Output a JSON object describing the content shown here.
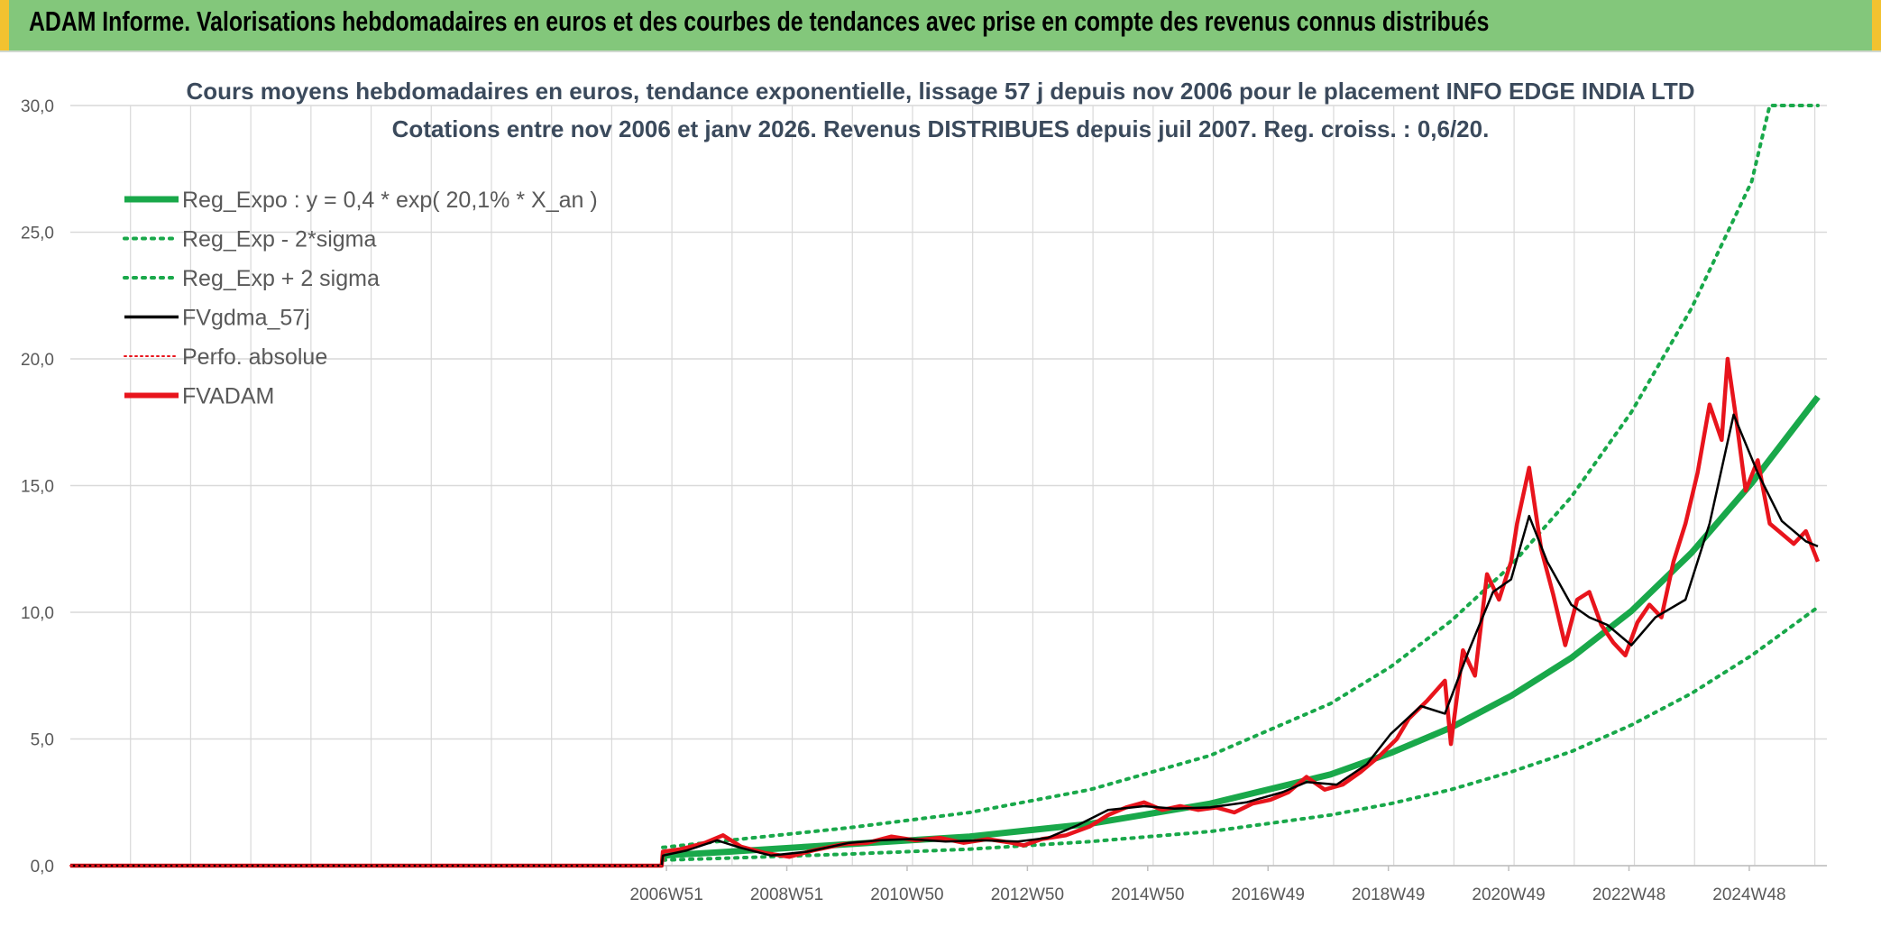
{
  "header": {
    "title": "ADAM Informe. Valorisations hebdomadaires en euros et des courbes de tendances avec prise en compte des revenus connus distribués"
  },
  "colors": {
    "banner_bg": "#83c77b",
    "banner_border": "#f2c230",
    "reg_expo": "#19a84a",
    "fvgdma": "#000000",
    "perfo": "#e8141c",
    "fvadam": "#e8141c",
    "grid": "#d9d9d9"
  },
  "chart_data": {
    "type": "line",
    "title": "Cours moyens hebdomadaires en euros, tendance exponentielle, lissage 57 j depuis nov 2006 pour le placement INFO EDGE INDIA LTD",
    "subtitle": "Cotations entre nov 2006 et janv 2026. Revenus DISTRIBUES depuis juil 2007. Reg. croiss. : 0,6/20.",
    "xlabel": "",
    "ylabel": "",
    "ylim": [
      0,
      30
    ],
    "yticks": [
      "0,0",
      "5,0",
      "10,0",
      "15,0",
      "20,0",
      "25,0",
      "30,0"
    ],
    "xticks": [
      "2006W51",
      "2008W51",
      "2010W50",
      "2012W50",
      "2014W50",
      "2016W49",
      "2018W49",
      "2020W49",
      "2022W48",
      "2024W48"
    ],
    "xtick_positions": [
      2006.96,
      2008.96,
      2010.96,
      2012.96,
      2014.96,
      2016.96,
      2018.96,
      2020.96,
      2022.96,
      2024.96
    ],
    "xlim": [
      1997.05,
      2026.25
    ],
    "grid": true,
    "legend_position": "top-left",
    "legend": [
      {
        "label": "Reg_Expo : y = 0,4 * exp( 20,1% *  X_an )",
        "style": "solid-thick",
        "color": "#19a84a"
      },
      {
        "label": "Reg_Exp - 2*sigma",
        "style": "dotted",
        "color": "#19a84a"
      },
      {
        "label": "Reg_Exp + 2 sigma",
        "style": "dotted",
        "color": "#19a84a"
      },
      {
        "label": "FVgdma_57j",
        "style": "solid",
        "color": "#000000"
      },
      {
        "label": "Perfo. absolue",
        "style": "dotted-thin",
        "color": "#e8141c"
      },
      {
        "label": "FVADAM",
        "style": "solid-thick",
        "color": "#e8141c"
      }
    ],
    "series": [
      {
        "name": "Reg_Expo : y = 0,4 * exp( 20,1% *  X_an )",
        "x": [
          2006.9,
          2008,
          2010,
          2012,
          2014,
          2016,
          2018,
          2019,
          2020,
          2021,
          2022,
          2023,
          2024,
          2025,
          2026.1
        ],
        "values": [
          0.4,
          0.55,
          0.85,
          1.15,
          1.65,
          2.45,
          3.6,
          4.45,
          5.45,
          6.7,
          8.2,
          10.05,
          12.35,
          15.1,
          18.5
        ]
      },
      {
        "name": "Reg_Exp - 2*sigma",
        "x": [
          2006.9,
          2008,
          2010,
          2012,
          2014,
          2016,
          2018,
          2019,
          2020,
          2021,
          2022,
          2023,
          2024,
          2025,
          2026.1
        ],
        "values": [
          0.22,
          0.3,
          0.46,
          0.65,
          0.95,
          1.35,
          2.0,
          2.45,
          3.0,
          3.7,
          4.5,
          5.55,
          6.8,
          8.3,
          10.2
        ]
      },
      {
        "name": "Reg_Exp + 2 sigma",
        "x": [
          2006.9,
          2008,
          2010,
          2012,
          2014,
          2016,
          2018,
          2019,
          2020,
          2021,
          2022,
          2023,
          2024,
          2025,
          2025.3,
          2026.1
        ],
        "values": [
          0.72,
          1.0,
          1.5,
          2.1,
          3.0,
          4.35,
          6.4,
          7.85,
          9.65,
          11.85,
          14.55,
          17.9,
          22.0,
          27.0,
          30.0,
          30.0
        ]
      },
      {
        "name": "FVgdma_57j",
        "x": [
          1997.05,
          2006.88,
          2006.9,
          2007.3,
          2007.8,
          2008.2,
          2008.7,
          2009.3,
          2010.0,
          2010.5,
          2011.0,
          2011.6,
          2012.2,
          2012.8,
          2013.3,
          2013.8,
          2014.3,
          2014.9,
          2015.4,
          2016.0,
          2016.6,
          2017.2,
          2017.6,
          2018.1,
          2018.6,
          2019.0,
          2019.5,
          2019.9,
          2020.3,
          2020.7,
          2021.0,
          2021.3,
          2021.6,
          2022.0,
          2022.3,
          2022.6,
          2023.0,
          2023.4,
          2023.9,
          2024.3,
          2024.7,
          2025.1,
          2025.5,
          2025.9,
          2026.1
        ],
        "values": [
          0.0,
          0.0,
          0.4,
          0.6,
          1.0,
          0.7,
          0.4,
          0.55,
          0.9,
          1.0,
          1.05,
          0.95,
          1.0,
          0.95,
          1.1,
          1.6,
          2.2,
          2.35,
          2.25,
          2.3,
          2.5,
          2.9,
          3.3,
          3.2,
          4.0,
          5.2,
          6.3,
          6.0,
          8.5,
          10.8,
          11.3,
          13.8,
          12.0,
          10.3,
          9.8,
          9.5,
          8.7,
          9.8,
          10.5,
          13.5,
          17.8,
          15.5,
          13.6,
          12.8,
          12.6
        ]
      },
      {
        "name": "Perfo. absolue",
        "x": [
          1997.05,
          2006.88
        ],
        "values": [
          0.0,
          0.0
        ]
      },
      {
        "name": "FVADAM",
        "x": [
          1997.05,
          2006.88,
          2006.9,
          2007.2,
          2007.6,
          2007.9,
          2008.2,
          2008.6,
          2009.0,
          2009.4,
          2009.9,
          2010.3,
          2010.7,
          2011.1,
          2011.5,
          2011.9,
          2012.3,
          2012.7,
          2012.9,
          2013.2,
          2013.6,
          2014.0,
          2014.3,
          2014.6,
          2014.9,
          2015.2,
          2015.5,
          2015.8,
          2016.1,
          2016.4,
          2016.7,
          2017.0,
          2017.3,
          2017.6,
          2017.9,
          2018.2,
          2018.5,
          2018.8,
          2019.1,
          2019.3,
          2019.6,
          2019.9,
          2020.0,
          2020.2,
          2020.4,
          2020.6,
          2020.8,
          2021.0,
          2021.1,
          2021.3,
          2021.5,
          2021.7,
          2021.9,
          2022.1,
          2022.3,
          2022.5,
          2022.7,
          2022.9,
          2023.1,
          2023.3,
          2023.5,
          2023.7,
          2023.9,
          2024.1,
          2024.3,
          2024.5,
          2024.6,
          2024.75,
          2024.9,
          2025.1,
          2025.3,
          2025.5,
          2025.7,
          2025.9,
          2026.0,
          2026.1
        ],
        "values": [
          0.0,
          0.0,
          0.55,
          0.65,
          0.9,
          1.2,
          0.75,
          0.5,
          0.35,
          0.6,
          0.85,
          0.9,
          1.15,
          1.0,
          1.1,
          0.9,
          1.05,
          0.9,
          0.8,
          1.05,
          1.2,
          1.55,
          2.0,
          2.3,
          2.5,
          2.2,
          2.35,
          2.2,
          2.3,
          2.1,
          2.45,
          2.6,
          2.9,
          3.5,
          3.0,
          3.2,
          3.7,
          4.3,
          5.0,
          5.8,
          6.5,
          7.3,
          4.8,
          8.5,
          7.5,
          11.5,
          10.5,
          12.0,
          13.5,
          15.7,
          12.5,
          10.7,
          8.7,
          10.5,
          10.8,
          9.5,
          8.8,
          8.3,
          9.6,
          10.3,
          9.8,
          12.0,
          13.5,
          15.5,
          18.2,
          16.8,
          20.0,
          17.5,
          14.8,
          16.0,
          13.5,
          13.1,
          12.7,
          13.2,
          12.6,
          12.0
        ]
      }
    ]
  }
}
